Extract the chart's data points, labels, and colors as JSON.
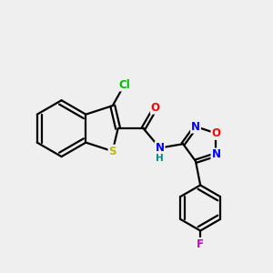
{
  "background_color": "#efefef",
  "bond_color": "#000000",
  "atom_colors": {
    "Cl": "#00bb00",
    "S": "#bbbb00",
    "O": "#ff0000",
    "N": "#0000ff",
    "F": "#cc00cc",
    "H": "#008888",
    "C": "#000000"
  },
  "bond_lw": 1.6,
  "font_size": 8.5
}
